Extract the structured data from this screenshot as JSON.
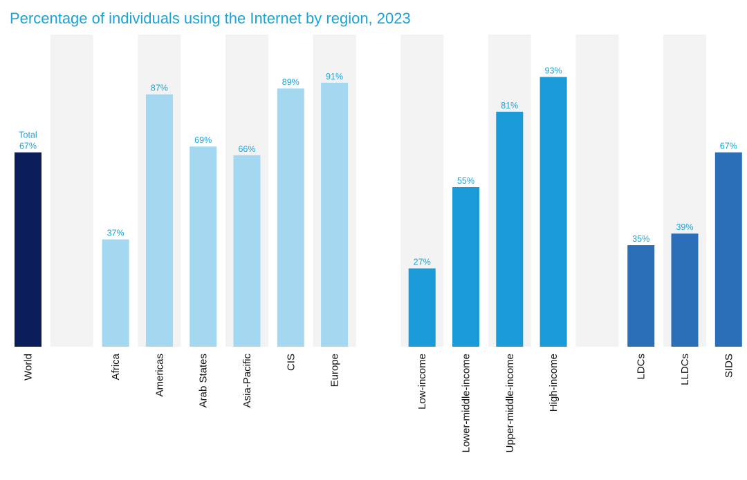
{
  "chart_data": {
    "type": "bar",
    "title": "Percentage of individuals using the Internet by region, 2023",
    "ylim": [
      0,
      100
    ],
    "grid": false,
    "colors": {
      "title": "#1aa3d9",
      "label": "#1aa3d9",
      "band": "#f3f3f3",
      "world": "#0b1e5b",
      "regions": "#a3d8f0",
      "income": "#1a9ad6",
      "groups": "#2a6fb8"
    },
    "categories": [
      "World",
      "",
      "Africa",
      "Americas",
      "Arab States",
      "Asia-Pacific",
      "CIS",
      "Europe",
      "",
      "Low-income",
      "Lower-middle-income",
      "Upper-middle-income",
      "High-income",
      "",
      "LDCs",
      "LLDCs",
      "SIDS"
    ],
    "bars": [
      {
        "category": "World",
        "value": 67,
        "label_top": "Total",
        "label": "67%",
        "group": "world"
      },
      {
        "category": "",
        "value": null,
        "label": "",
        "group": "spacer"
      },
      {
        "category": "Africa",
        "value": 37,
        "label": "37%",
        "group": "regions"
      },
      {
        "category": "Americas",
        "value": 87,
        "label": "87%",
        "group": "regions"
      },
      {
        "category": "Arab States",
        "value": 69,
        "label": "69%",
        "group": "regions"
      },
      {
        "category": "Asia-Pacific",
        "value": 66,
        "label": "66%",
        "group": "regions"
      },
      {
        "category": "CIS",
        "value": 89,
        "label": "89%",
        "group": "regions"
      },
      {
        "category": "Europe",
        "value": 91,
        "label": "91%",
        "group": "regions"
      },
      {
        "category": "",
        "value": null,
        "label": "",
        "group": "spacer"
      },
      {
        "category": "Low-income",
        "value": 27,
        "label": "27%",
        "group": "income"
      },
      {
        "category": "Lower-middle-income",
        "value": 55,
        "label": "55%",
        "group": "income"
      },
      {
        "category": "Upper-middle-income",
        "value": 81,
        "label": "81%",
        "group": "income"
      },
      {
        "category": "High-income",
        "value": 93,
        "label": "93%",
        "group": "income"
      },
      {
        "category": "",
        "value": null,
        "label": "",
        "group": "spacer"
      },
      {
        "category": "LDCs",
        "value": 35,
        "label": "35%",
        "group": "groups"
      },
      {
        "category": "LLDCs",
        "value": 39,
        "label": "39%",
        "group": "groups"
      },
      {
        "category": "SIDS",
        "value": 67,
        "label": "67%",
        "group": "groups"
      }
    ]
  }
}
